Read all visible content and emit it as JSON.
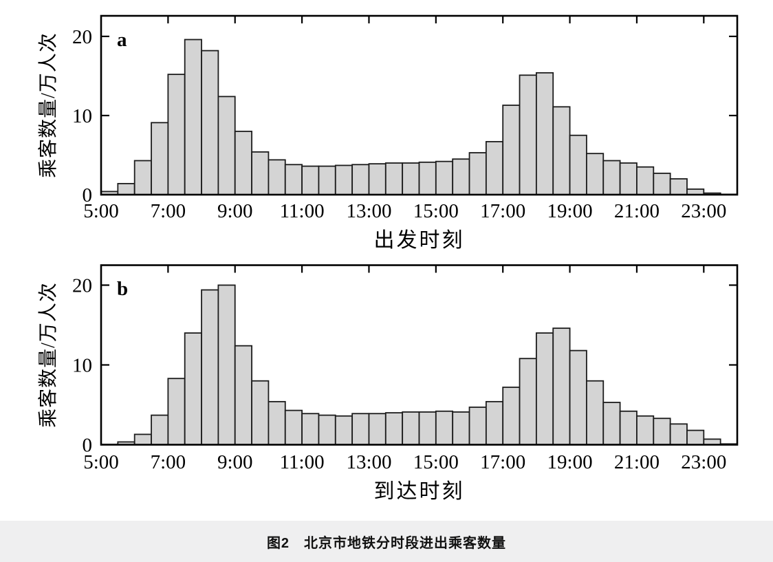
{
  "figure": {
    "caption": "图2　北京市地铁分时段进出乘客数量"
  },
  "chart_data": [
    {
      "type": "bar",
      "panel_letter": "a",
      "xlabel": "出发时刻",
      "ylabel": "乘客数量/万人次",
      "x_tick_labels": [
        "5:00",
        "7:00",
        "9:00",
        "11:00",
        "13:00",
        "15:00",
        "17:00",
        "19:00",
        "21:00",
        "23:00"
      ],
      "y_tick_labels": [
        "0",
        "10",
        "20"
      ],
      "y_ticks": [
        0,
        10,
        20
      ],
      "ylim": [
        0,
        22.6
      ],
      "xlim_time": [
        "5:00",
        "24:00"
      ],
      "bin_minutes": 30,
      "grid": false,
      "legend": "none",
      "categories": [
        "5:00",
        "5:30",
        "6:00",
        "6:30",
        "7:00",
        "7:30",
        "8:00",
        "8:30",
        "9:00",
        "9:30",
        "10:00",
        "10:30",
        "11:00",
        "11:30",
        "12:00",
        "12:30",
        "13:00",
        "13:30",
        "14:00",
        "14:30",
        "15:00",
        "15:30",
        "16:00",
        "16:30",
        "17:00",
        "17:30",
        "18:00",
        "18:30",
        "19:00",
        "19:30",
        "20:00",
        "20:30",
        "21:00",
        "21:30",
        "22:00",
        "22:30",
        "23:00",
        "23:30"
      ],
      "values": [
        0.4,
        1.4,
        4.3,
        9.1,
        15.2,
        19.6,
        18.2,
        12.4,
        8.0,
        5.4,
        4.4,
        3.8,
        3.6,
        3.6,
        3.7,
        3.8,
        3.9,
        4.0,
        4.0,
        4.1,
        4.2,
        4.5,
        5.3,
        6.7,
        11.3,
        15.1,
        15.4,
        11.1,
        7.5,
        5.2,
        4.3,
        4.0,
        3.5,
        2.7,
        2.0,
        0.7,
        0.2,
        0.05
      ]
    },
    {
      "type": "bar",
      "panel_letter": "b",
      "xlabel": "到达时刻",
      "ylabel": "乘客数量/万人次",
      "x_tick_labels": [
        "5:00",
        "7:00",
        "9:00",
        "11:00",
        "13:00",
        "15:00",
        "17:00",
        "19:00",
        "21:00",
        "23:00"
      ],
      "y_tick_labels": [
        "0",
        "10",
        "20"
      ],
      "y_ticks": [
        0,
        10,
        20
      ],
      "ylim": [
        0,
        22.5
      ],
      "xlim_time": [
        "5:00",
        "24:00"
      ],
      "bin_minutes": 30,
      "grid": false,
      "legend": "none",
      "categories": [
        "5:00",
        "5:30",
        "6:00",
        "6:30",
        "7:00",
        "7:30",
        "8:00",
        "8:30",
        "9:00",
        "9:30",
        "10:00",
        "10:30",
        "11:00",
        "11:30",
        "12:00",
        "12:30",
        "13:00",
        "13:30",
        "14:00",
        "14:30",
        "15:00",
        "15:30",
        "16:00",
        "16:30",
        "17:00",
        "17:30",
        "18:00",
        "18:30",
        "19:00",
        "19:30",
        "20:00",
        "20:30",
        "21:00",
        "21:30",
        "22:00",
        "22:30",
        "23:00",
        "23:30"
      ],
      "values": [
        0.05,
        0.35,
        1.3,
        3.7,
        8.3,
        14.0,
        19.4,
        20.0,
        12.4,
        8.0,
        5.4,
        4.3,
        3.9,
        3.7,
        3.6,
        3.9,
        3.9,
        4.0,
        4.1,
        4.1,
        4.2,
        4.1,
        4.7,
        5.4,
        7.2,
        10.8,
        14.0,
        14.6,
        11.8,
        8.0,
        5.3,
        4.2,
        3.6,
        3.3,
        2.6,
        1.8,
        0.7,
        0.1
      ]
    }
  ],
  "style": {
    "bar_fill": "#d4d4d4",
    "bar_stroke": "#1c1c1c",
    "axis_color": "#000000",
    "caption_band_color": "#efeff0",
    "background": "#ffffff"
  }
}
